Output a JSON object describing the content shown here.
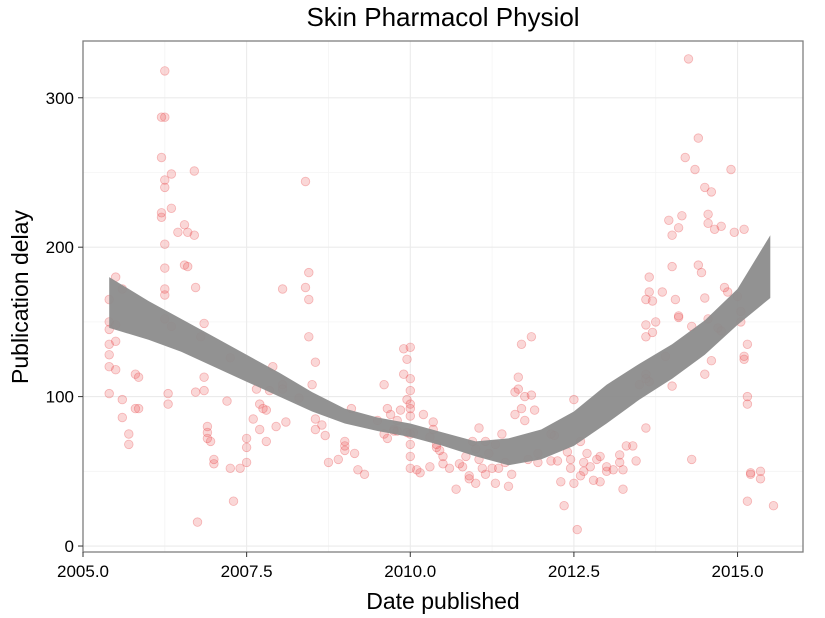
{
  "chart_data": {
    "type": "scatter",
    "title": "Skin Pharmacol Physiol",
    "xlabel": "Date published",
    "ylabel": "Publication delay",
    "xlim": [
      2005.0,
      2016.0
    ],
    "ylim": [
      -4,
      338
    ],
    "x_ticks": [
      2005.0,
      2007.5,
      2010.0,
      2012.5,
      2015.0
    ],
    "x_tick_labels": [
      "2005.0",
      "2007.5",
      "2010.0",
      "2012.5",
      "2015.0"
    ],
    "y_ticks": [
      0,
      100,
      200,
      300
    ],
    "y_tick_labels": [
      "0",
      "100",
      "200",
      "300"
    ],
    "grid": true,
    "point_color": "#e8474a",
    "point_opacity": 0.22,
    "band_color": "#8c8c8c",
    "points": [
      [
        2005.4,
        165
      ],
      [
        2005.4,
        150
      ],
      [
        2005.4,
        145
      ],
      [
        2005.4,
        135
      ],
      [
        2005.4,
        128
      ],
      [
        2005.4,
        120
      ],
      [
        2005.4,
        102
      ],
      [
        2005.5,
        180
      ],
      [
        2005.5,
        148
      ],
      [
        2005.5,
        137
      ],
      [
        2005.5,
        118
      ],
      [
        2005.6,
        172
      ],
      [
        2005.6,
        98
      ],
      [
        2005.6,
        86
      ],
      [
        2005.7,
        75
      ],
      [
        2005.7,
        68
      ],
      [
        2005.8,
        115
      ],
      [
        2005.8,
        92
      ],
      [
        2005.85,
        113
      ],
      [
        2005.85,
        92
      ],
      [
        2006.2,
        287
      ],
      [
        2006.2,
        260
      ],
      [
        2006.2,
        223
      ],
      [
        2006.2,
        220
      ],
      [
        2006.25,
        287
      ],
      [
        2006.25,
        318
      ],
      [
        2006.25,
        245
      ],
      [
        2006.25,
        240
      ],
      [
        2006.25,
        202
      ],
      [
        2006.25,
        186
      ],
      [
        2006.25,
        172
      ],
      [
        2006.25,
        168
      ],
      [
        2006.25,
        152
      ],
      [
        2006.3,
        102
      ],
      [
        2006.3,
        95
      ],
      [
        2006.35,
        249
      ],
      [
        2006.35,
        226
      ],
      [
        2006.35,
        147
      ],
      [
        2006.45,
        210
      ],
      [
        2006.55,
        215
      ],
      [
        2006.55,
        188
      ],
      [
        2006.6,
        210
      ],
      [
        2006.6,
        187
      ],
      [
        2006.7,
        251
      ],
      [
        2006.7,
        208
      ],
      [
        2006.72,
        173
      ],
      [
        2006.72,
        103
      ],
      [
        2006.75,
        16
      ],
      [
        2006.8,
        140
      ],
      [
        2006.85,
        149
      ],
      [
        2006.85,
        113
      ],
      [
        2006.85,
        104
      ],
      [
        2006.9,
        80
      ],
      [
        2006.9,
        76
      ],
      [
        2006.9,
        72
      ],
      [
        2006.95,
        70
      ],
      [
        2007.0,
        58
      ],
      [
        2007.0,
        55
      ],
      [
        2007.2,
        97
      ],
      [
        2007.25,
        126
      ],
      [
        2007.25,
        52
      ],
      [
        2007.3,
        30
      ],
      [
        2007.4,
        52
      ],
      [
        2007.5,
        72
      ],
      [
        2007.5,
        66
      ],
      [
        2007.5,
        56
      ],
      [
        2007.6,
        85
      ],
      [
        2007.65,
        105
      ],
      [
        2007.7,
        95
      ],
      [
        2007.7,
        78
      ],
      [
        2007.75,
        92
      ],
      [
        2007.8,
        91
      ],
      [
        2007.8,
        70
      ],
      [
        2007.9,
        120
      ],
      [
        2007.95,
        80
      ],
      [
        2008.05,
        172
      ],
      [
        2008.05,
        108
      ],
      [
        2008.05,
        105
      ],
      [
        2008.1,
        83
      ],
      [
        2008.4,
        244
      ],
      [
        2008.4,
        173
      ],
      [
        2008.45,
        183
      ],
      [
        2008.45,
        165
      ],
      [
        2008.45,
        140
      ],
      [
        2008.5,
        108
      ],
      [
        2008.55,
        123
      ],
      [
        2008.55,
        85
      ],
      [
        2008.55,
        78
      ],
      [
        2008.65,
        81
      ],
      [
        2008.7,
        74
      ],
      [
        2008.75,
        56
      ],
      [
        2008.9,
        58
      ],
      [
        2009.0,
        70
      ],
      [
        2009.0,
        64
      ],
      [
        2009.0,
        67
      ],
      [
        2009.1,
        92
      ],
      [
        2009.15,
        62
      ],
      [
        2009.2,
        51
      ],
      [
        2009.3,
        48
      ],
      [
        2009.5,
        84
      ],
      [
        2009.6,
        108
      ],
      [
        2009.6,
        75
      ],
      [
        2009.65,
        92
      ],
      [
        2009.65,
        72
      ],
      [
        2009.7,
        88
      ],
      [
        2009.75,
        78
      ],
      [
        2009.75,
        77
      ],
      [
        2009.8,
        84
      ],
      [
        2009.8,
        77
      ],
      [
        2009.9,
        132
      ],
      [
        2009.9,
        115
      ],
      [
        2009.95,
        125
      ],
      [
        2009.95,
        98
      ],
      [
        2009.95,
        76
      ],
      [
        2010.0,
        133
      ],
      [
        2010.0,
        112
      ],
      [
        2010.0,
        104
      ],
      [
        2010.0,
        95
      ],
      [
        2010.0,
        92
      ],
      [
        2010.0,
        87
      ],
      [
        2010.0,
        75
      ],
      [
        2010.0,
        68
      ],
      [
        2010.0,
        60
      ],
      [
        2010.0,
        52
      ],
      [
        2010.05,
        76
      ],
      [
        2010.1,
        51
      ],
      [
        2010.15,
        49
      ],
      [
        2010.2,
        88
      ],
      [
        2010.3,
        73
      ],
      [
        2010.3,
        53
      ],
      [
        2010.35,
        83
      ],
      [
        2010.35,
        78
      ],
      [
        2010.4,
        68
      ],
      [
        2010.4,
        66
      ],
      [
        2010.45,
        64
      ],
      [
        2010.5,
        60
      ],
      [
        2010.5,
        55
      ],
      [
        2010.6,
        52
      ],
      [
        2010.7,
        38
      ],
      [
        2010.8,
        53
      ],
      [
        2010.85,
        60
      ],
      [
        2010.9,
        47
      ],
      [
        2010.9,
        45
      ],
      [
        2010.95,
        70
      ],
      [
        2011.0,
        65
      ],
      [
        2011.0,
        42
      ],
      [
        2011.05,
        79
      ],
      [
        2011.05,
        58
      ],
      [
        2011.1,
        52
      ],
      [
        2011.15,
        70
      ],
      [
        2011.15,
        48
      ],
      [
        2011.2,
        62
      ],
      [
        2011.25,
        52
      ],
      [
        2011.3,
        42
      ],
      [
        2011.3,
        68
      ],
      [
        2011.4,
        75
      ],
      [
        2011.45,
        56
      ],
      [
        2011.5,
        40
      ],
      [
        2011.55,
        48
      ],
      [
        2011.6,
        103
      ],
      [
        2011.6,
        88
      ],
      [
        2011.65,
        113
      ],
      [
        2011.65,
        105
      ],
      [
        2011.7,
        135
      ],
      [
        2011.7,
        92
      ],
      [
        2011.75,
        100
      ],
      [
        2011.75,
        84
      ],
      [
        2011.8,
        58
      ],
      [
        2011.85,
        140
      ],
      [
        2011.85,
        101
      ],
      [
        2011.9,
        91
      ],
      [
        2011.95,
        56
      ],
      [
        2012.15,
        57
      ],
      [
        2012.15,
        75
      ],
      [
        2012.2,
        74
      ],
      [
        2012.25,
        57
      ],
      [
        2012.3,
        43
      ],
      [
        2012.35,
        27
      ],
      [
        2012.4,
        63
      ],
      [
        2012.45,
        58
      ],
      [
        2012.5,
        42
      ],
      [
        2012.5,
        98
      ],
      [
        2012.55,
        11
      ],
      [
        2012.6,
        70
      ],
      [
        2012.65,
        56
      ],
      [
        2012.65,
        50
      ],
      [
        2012.7,
        62
      ],
      [
        2012.75,
        53
      ],
      [
        2012.8,
        44
      ],
      [
        2012.85,
        58
      ],
      [
        2012.9,
        60
      ],
      [
        2012.9,
        43
      ],
      [
        2013.0,
        53
      ],
      [
        2013.0,
        50
      ],
      [
        2013.1,
        51
      ],
      [
        2013.2,
        61
      ],
      [
        2013.2,
        56
      ],
      [
        2013.25,
        51
      ],
      [
        2013.25,
        38
      ],
      [
        2013.4,
        67
      ],
      [
        2013.45,
        57
      ],
      [
        2013.5,
        108
      ],
      [
        2013.6,
        165
      ],
      [
        2013.6,
        148
      ],
      [
        2013.6,
        140
      ],
      [
        2013.6,
        115
      ],
      [
        2013.6,
        112
      ],
      [
        2013.6,
        79
      ],
      [
        2013.65,
        180
      ],
      [
        2013.65,
        170
      ],
      [
        2013.65,
        110
      ],
      [
        2013.7,
        164
      ],
      [
        2013.7,
        143
      ],
      [
        2013.75,
        150
      ],
      [
        2013.85,
        170
      ],
      [
        2013.95,
        218
      ],
      [
        2014.0,
        208
      ],
      [
        2014.0,
        187
      ],
      [
        2014.0,
        107
      ],
      [
        2014.05,
        165
      ],
      [
        2014.1,
        153
      ],
      [
        2014.1,
        154
      ],
      [
        2014.1,
        213
      ],
      [
        2014.15,
        221
      ],
      [
        2014.2,
        260
      ],
      [
        2014.25,
        326
      ],
      [
        2014.3,
        58
      ],
      [
        2014.3,
        147
      ],
      [
        2014.35,
        252
      ],
      [
        2014.4,
        188
      ],
      [
        2014.4,
        273
      ],
      [
        2014.45,
        183
      ],
      [
        2014.5,
        240
      ],
      [
        2014.5,
        166
      ],
      [
        2014.5,
        115
      ],
      [
        2014.55,
        222
      ],
      [
        2014.55,
        216
      ],
      [
        2014.55,
        152
      ],
      [
        2014.6,
        237
      ],
      [
        2014.6,
        124
      ],
      [
        2014.65,
        212
      ],
      [
        2014.7,
        146
      ],
      [
        2014.75,
        214
      ],
      [
        2014.75,
        144
      ],
      [
        2014.8,
        173
      ],
      [
        2014.85,
        170
      ],
      [
        2014.9,
        252
      ],
      [
        2014.95,
        210
      ],
      [
        2015.0,
        167
      ],
      [
        2015.05,
        157
      ],
      [
        2015.05,
        150
      ],
      [
        2015.1,
        212
      ],
      [
        2015.1,
        127
      ],
      [
        2015.1,
        125
      ],
      [
        2015.15,
        135
      ],
      [
        2015.15,
        100
      ],
      [
        2015.15,
        95
      ],
      [
        2015.15,
        30
      ],
      [
        2015.2,
        49
      ],
      [
        2015.2,
        48
      ],
      [
        2015.35,
        50
      ],
      [
        2015.35,
        45
      ],
      [
        2015.55,
        27
      ],
      [
        2012.6,
        47
      ],
      [
        2012.45,
        52
      ],
      [
        2011.95,
        62
      ],
      [
        2011.35,
        52
      ],
      [
        2010.75,
        55
      ],
      [
        2013.3,
        67
      ],
      [
        2009.85,
        91
      ],
      [
        2008.3,
        99
      ],
      [
        2007.85,
        104
      ],
      [
        2013.9,
        127
      ]
    ],
    "smooth_band": {
      "x": [
        2005.4,
        2006.0,
        2006.5,
        2007.0,
        2007.5,
        2008.0,
        2008.5,
        2009.0,
        2009.5,
        2010.0,
        2010.5,
        2011.0,
        2011.5,
        2012.0,
        2012.5,
        2013.0,
        2013.5,
        2014.0,
        2014.5,
        2015.0,
        2015.5
      ],
      "upper": [
        180,
        164,
        152,
        140,
        128,
        116,
        103,
        92,
        86,
        82,
        76,
        70,
        72,
        78,
        90,
        108,
        122,
        135,
        151,
        172,
        208
      ],
      "lower": [
        146,
        138,
        130,
        120,
        110,
        100,
        90,
        82,
        77,
        73,
        67,
        60,
        54,
        58,
        67,
        82,
        98,
        112,
        128,
        148,
        166
      ]
    }
  }
}
